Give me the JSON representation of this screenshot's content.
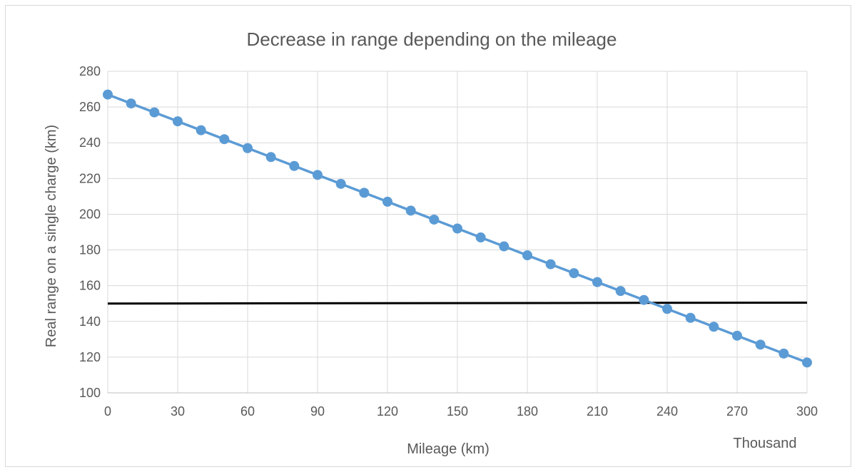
{
  "chart_data": {
    "type": "line",
    "title": "Decrease in range depending on the mileage",
    "xlabel": "Mileage (km)",
    "ylabel": "Real range on a single charge (km)",
    "x_unit_label": "Thousand",
    "xlim": [
      0,
      300
    ],
    "ylim": [
      100,
      280
    ],
    "x_ticks": [
      0,
      30,
      60,
      90,
      120,
      150,
      180,
      210,
      240,
      270,
      300
    ],
    "y_ticks": [
      100,
      120,
      140,
      160,
      180,
      200,
      220,
      240,
      260,
      280
    ],
    "grid": true,
    "legend": "none",
    "series": [
      {
        "color": "#5b9bd5",
        "marker": "circle",
        "x": [
          0,
          10,
          20,
          30,
          40,
          50,
          60,
          70,
          80,
          90,
          100,
          110,
          120,
          130,
          140,
          150,
          160,
          170,
          180,
          190,
          200,
          210,
          220,
          230,
          240,
          250,
          260,
          270,
          280,
          290,
          300
        ],
        "y": [
          267,
          262,
          257,
          252,
          247,
          242,
          237,
          232,
          227,
          222,
          217,
          212,
          207,
          202,
          197,
          192,
          187,
          182,
          177,
          172,
          167,
          162,
          157,
          152,
          147,
          142,
          137,
          132,
          127,
          122,
          117
        ]
      },
      {
        "color": "#000000",
        "marker": "none",
        "x": [
          0,
          300
        ],
        "y": [
          150,
          150.5
        ]
      }
    ]
  }
}
